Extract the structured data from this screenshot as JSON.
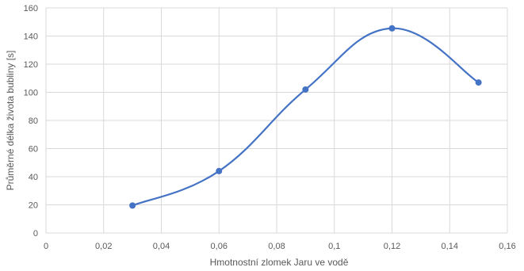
{
  "chart_data": {
    "type": "line",
    "smooth": true,
    "title": "",
    "xlabel": "Hmotnostní zlomek Jaru ve vodě",
    "ylabel": "Průměrné délka života bubliny [s]",
    "xlim": [
      0,
      0.16
    ],
    "ylim": [
      0,
      160
    ],
    "xticks": [
      0,
      0.02,
      0.04,
      0.06,
      0.08,
      0.1,
      0.12,
      0.14,
      0.16
    ],
    "xtick_labels": [
      "0",
      "0,02",
      "0,04",
      "0,06",
      "0,08",
      "0,1",
      "0,12",
      "0,14",
      "0,16"
    ],
    "yticks": [
      0,
      20,
      40,
      60,
      80,
      100,
      120,
      140,
      160
    ],
    "ytick_labels": [
      "0",
      "20",
      "40",
      "60",
      "80",
      "100",
      "120",
      "140",
      "160"
    ],
    "grid": true,
    "series": [
      {
        "color": "#4472c4",
        "x": [
          0.03,
          0.06,
          0.09,
          0.12,
          0.15
        ],
        "y": [
          19.5,
          44,
          102,
          145.5,
          107
        ]
      }
    ]
  }
}
